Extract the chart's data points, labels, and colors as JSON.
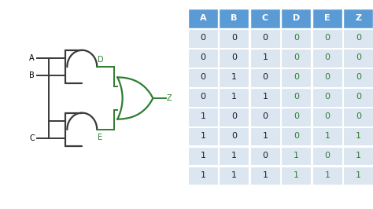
{
  "bg_color": "#ffffff",
  "diagram_bg": "#ffffff",
  "table_header_bg": "#5b9bd5",
  "table_row_bg": "#dce6f1",
  "table_header_color": "#ffffff",
  "table_black_color": "#1a1a2e",
  "table_green_color": "#2e7d32",
  "gate_color": "#3a3a3a",
  "wire_color_green": "#2e7d32",
  "label_green": "#2e7d32",
  "headers": [
    "A",
    "B",
    "C",
    "D",
    "E",
    "Z"
  ],
  "rows": [
    [
      0,
      0,
      0,
      0,
      0,
      0
    ],
    [
      0,
      0,
      1,
      0,
      0,
      0
    ],
    [
      0,
      1,
      0,
      0,
      0,
      0
    ],
    [
      0,
      1,
      1,
      0,
      0,
      0
    ],
    [
      1,
      0,
      0,
      0,
      0,
      0
    ],
    [
      1,
      0,
      1,
      0,
      1,
      1
    ],
    [
      1,
      1,
      0,
      1,
      0,
      1
    ],
    [
      1,
      1,
      1,
      1,
      1,
      1
    ]
  ]
}
